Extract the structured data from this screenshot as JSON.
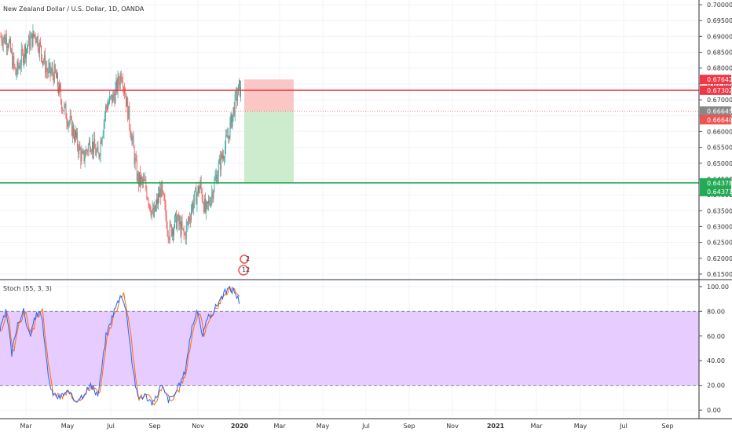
{
  "header": {
    "symbol_title": "New Zealand Dollar / U.S. Dollar, 1D, OANDA"
  },
  "indicator": {
    "label": "Stoch (55, 3, 3)"
  },
  "colors": {
    "bull": "#26a69a",
    "bear": "#ef5350",
    "resistance": "#f23645",
    "support": "#22ab54",
    "loss_zone": "#fbc6c6",
    "profit_zone": "#cdeccd",
    "stoch_band": "#e6ccff",
    "stoch_k": "#2962ff",
    "stoch_d": "#ff6d00"
  },
  "events": {
    "badge_top": "2",
    "badge_bottom": "12"
  },
  "chart_data": [
    {
      "type": "candlestick",
      "x_ticks": [
        "Mar",
        "May",
        "Jul",
        "Sep",
        "Nov",
        "2020",
        "Mar",
        "May",
        "Jul",
        "Sep",
        "Nov",
        "2021",
        "Mar",
        "May",
        "Jul",
        "Sep"
      ],
      "y_ticks": [
        "0.70000",
        "0.69500",
        "0.69000",
        "0.68500",
        "0.68000",
        "0.67500",
        "0.67000",
        "0.66500",
        "0.66000",
        "0.65500",
        "0.65000",
        "0.64500",
        "0.64000",
        "0.63500",
        "0.63000",
        "0.62500",
        "0.62000",
        "0.61500"
      ],
      "ylim": [
        0.6135,
        0.7015
      ],
      "price_path": [
        [
          0,
          0.69
        ],
        [
          10,
          0.689
        ],
        [
          20,
          0.678
        ],
        [
          30,
          0.685
        ],
        [
          45,
          0.691
        ],
        [
          60,
          0.679
        ],
        [
          70,
          0.678
        ],
        [
          80,
          0.668
        ],
        [
          95,
          0.659
        ],
        [
          105,
          0.651
        ],
        [
          115,
          0.657
        ],
        [
          125,
          0.652
        ],
        [
          135,
          0.668
        ],
        [
          145,
          0.671
        ],
        [
          155,
          0.679
        ],
        [
          165,
          0.663
        ],
        [
          175,
          0.645
        ],
        [
          185,
          0.643
        ],
        [
          195,
          0.633
        ],
        [
          205,
          0.642
        ],
        [
          215,
          0.628
        ],
        [
          225,
          0.632
        ],
        [
          235,
          0.627
        ],
        [
          245,
          0.637
        ],
        [
          255,
          0.643
        ],
        [
          262,
          0.634
        ],
        [
          270,
          0.641
        ],
        [
          280,
          0.65
        ],
        [
          290,
          0.658
        ],
        [
          300,
          0.67
        ],
        [
          305,
          0.674
        ],
        [
          307,
          0.672
        ]
      ],
      "horizontal_levels": [
        {
          "price": 0.67302,
          "label": "0.67302",
          "color": "#f23645"
        },
        {
          "price": 0.64378,
          "label": "0.64378",
          "color": "#22ab54"
        }
      ],
      "price_badges": [
        {
          "price": 0.67642,
          "label": "0.67642",
          "color": "#f23645"
        },
        {
          "price": 0.66645,
          "label": "0.66645",
          "color": "#888888"
        },
        {
          "price": 0.6664,
          "label": "0.66640",
          "color": "#ef5350"
        },
        {
          "price": 0.64371,
          "label": "0.64371",
          "color": "#22ab54"
        }
      ],
      "position": {
        "entry": 0.66645,
        "stop": 0.67642,
        "target": 0.64378
      }
    },
    {
      "type": "line",
      "y_ticks": [
        "100.00",
        "80.00",
        "60.00",
        "40.00",
        "20.00",
        "0.00"
      ],
      "ylim": [
        -5,
        105
      ],
      "band": [
        20,
        80
      ],
      "k_path": [
        [
          0,
          65
        ],
        [
          8,
          80
        ],
        [
          15,
          45
        ],
        [
          22,
          70
        ],
        [
          30,
          80
        ],
        [
          38,
          60
        ],
        [
          45,
          75
        ],
        [
          52,
          82
        ],
        [
          58,
          45
        ],
        [
          65,
          15
        ],
        [
          75,
          10
        ],
        [
          85,
          15
        ],
        [
          95,
          8
        ],
        [
          105,
          12
        ],
        [
          115,
          20
        ],
        [
          125,
          12
        ],
        [
          135,
          60
        ],
        [
          145,
          80
        ],
        [
          155,
          95
        ],
        [
          162,
          75
        ],
        [
          168,
          40
        ],
        [
          175,
          10
        ],
        [
          185,
          12
        ],
        [
          195,
          5
        ],
        [
          205,
          20
        ],
        [
          215,
          8
        ],
        [
          225,
          15
        ],
        [
          235,
          30
        ],
        [
          245,
          70
        ],
        [
          252,
          80
        ],
        [
          258,
          60
        ],
        [
          265,
          75
        ],
        [
          272,
          80
        ],
        [
          280,
          90
        ],
        [
          290,
          98
        ],
        [
          298,
          97
        ],
        [
          305,
          88
        ]
      ]
    }
  ]
}
